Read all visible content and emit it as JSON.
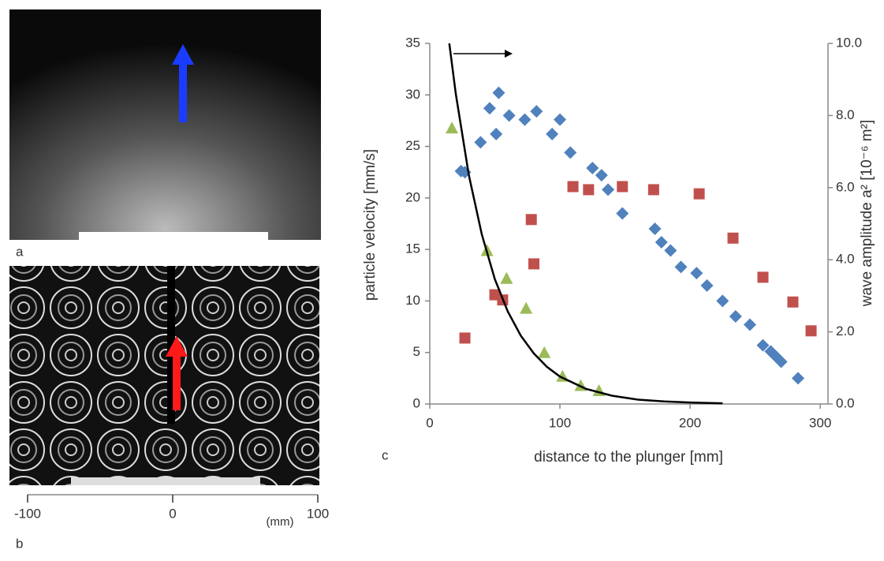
{
  "panel_labels": [
    "a",
    "b",
    "c"
  ],
  "scale_bar": {
    "ticks": [
      -100,
      0,
      100
    ],
    "unit": "(mm)"
  },
  "chart_data": {
    "type": "scatter",
    "xlabel": "distance to the plunger [mm]",
    "ylabel": "particle velocity [mm/s]",
    "y2label": "wave amplitude a² [10⁻⁶ m²]",
    "xlim": [
      0,
      306
    ],
    "xticks": [
      0,
      100,
      200,
      300
    ],
    "ylim": [
      0,
      35
    ],
    "yticks": [
      0,
      5,
      10,
      15,
      20,
      25,
      30,
      35
    ],
    "y2lim": [
      0,
      10
    ],
    "y2ticks": [
      {
        "value": 0,
        "label": "0.0"
      },
      {
        "value": 2,
        "label": "2.0"
      },
      {
        "value": 4,
        "label": "4.0"
      },
      {
        "value": 6,
        "label": "6.0"
      },
      {
        "value": 8,
        "label": "8.0"
      },
      {
        "value": 10,
        "label": "10.0"
      }
    ],
    "grid": false,
    "series": [
      {
        "color": "#4f81bd",
        "marker": "diamond",
        "x": [
          24,
          27,
          39,
          46,
          51,
          53,
          61,
          73,
          82,
          94,
          100,
          108,
          125,
          132,
          137,
          148,
          173,
          178,
          185,
          193,
          205,
          213,
          225,
          235,
          246,
          256,
          262,
          266,
          270,
          283
        ],
        "values": [
          22.6,
          22.5,
          25.4,
          28.7,
          26.2,
          30.2,
          28.0,
          27.6,
          28.4,
          26.2,
          27.6,
          24.4,
          22.9,
          22.2,
          20.8,
          18.5,
          17.0,
          15.7,
          14.9,
          13.3,
          12.7,
          11.5,
          10.0,
          8.5,
          7.7,
          5.7,
          5.1,
          4.6,
          4.1,
          2.5
        ]
      },
      {
        "color": "#c0504d",
        "marker": "square",
        "x": [
          27,
          50,
          56,
          78,
          80,
          110,
          122,
          148,
          172,
          207,
          233,
          256,
          279,
          293
        ],
        "values": [
          6.4,
          10.6,
          10.1,
          17.9,
          13.6,
          21.1,
          20.8,
          21.1,
          20.8,
          20.4,
          16.1,
          12.3,
          9.9,
          7.1
        ]
      },
      {
        "color": "#9bbb59",
        "marker": "triangle",
        "x": [
          17,
          44,
          59,
          74,
          88,
          102,
          116,
          130
        ],
        "values": [
          26.8,
          14.9,
          12.2,
          9.3,
          5.0,
          2.7,
          1.8,
          1.3
        ]
      },
      {
        "color": "#000000",
        "marker": "line",
        "axis": "y2",
        "x": [
          15,
          20,
          30,
          40,
          50,
          60,
          70,
          80,
          90,
          100,
          120,
          140,
          160,
          180,
          200,
          225
        ],
        "values": [
          10.0,
          8.6,
          6.35,
          4.7,
          3.46,
          2.56,
          1.89,
          1.4,
          1.03,
          0.76,
          0.42,
          0.23,
          0.12,
          0.07,
          0.04,
          0.02
        ]
      }
    ]
  }
}
